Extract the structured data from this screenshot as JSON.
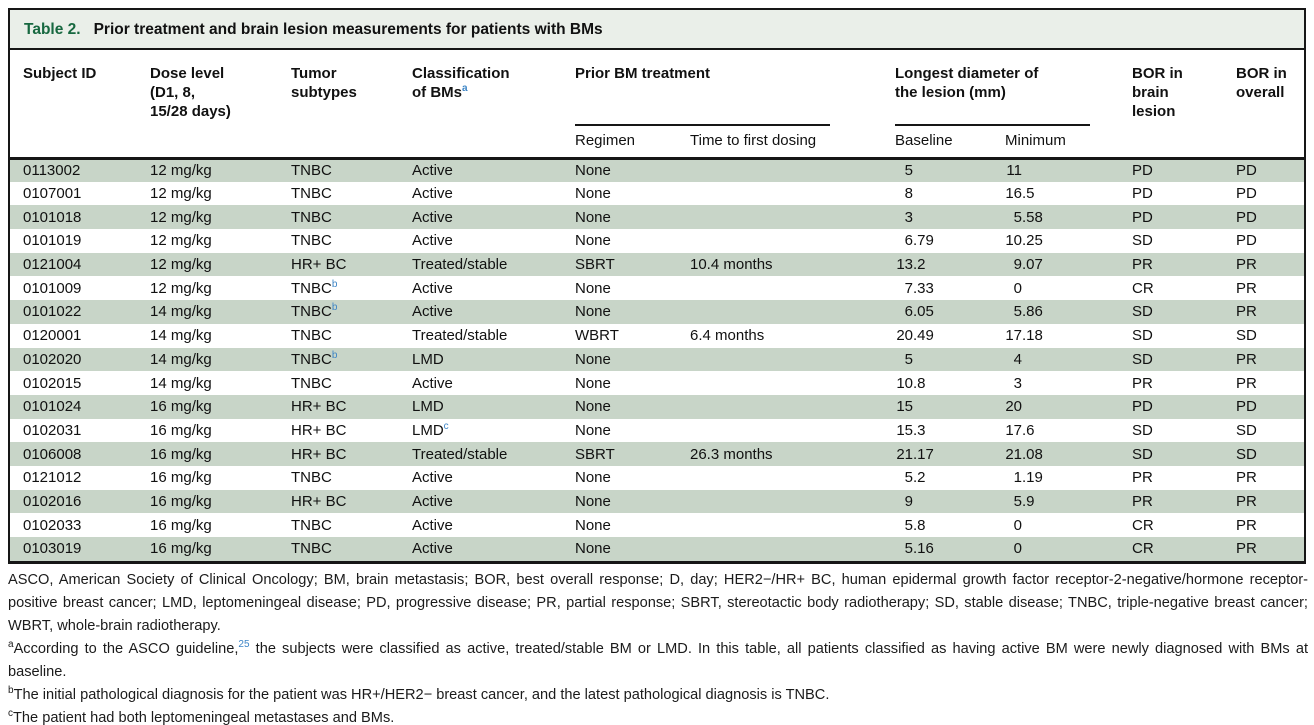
{
  "colors": {
    "stripe": "#c8d5c8",
    "title_bar_bg": "#eaefe9",
    "title_green": "#176840",
    "superscript_blue": "#3d85c6"
  },
  "table": {
    "title_label": "Table 2.",
    "title_text": "Prior treatment and brain lesion measurements for patients with BMs",
    "headers": {
      "subject_id": "Subject ID",
      "dose_level": "Dose level\n(D1, 8,\n15/28 days)",
      "tumor_subtypes": "Tumor\nsubtypes",
      "classification": "Classification\nof BMs",
      "classification_sup": "a",
      "prior_bm_group": "Prior BM treatment",
      "regimen": "Regimen",
      "time_to_first_dosing": "Time to first dosing",
      "diameter_group": "Longest diameter of\nthe lesion (mm)",
      "baseline": "Baseline",
      "minimum": "Minimum",
      "bor_brain": "BOR in\nbrain\nlesion",
      "bor_overall": "BOR in\noverall"
    },
    "rows": [
      {
        "subject_id": "0113002",
        "dose": "12 mg/kg",
        "subtype": "TNBC",
        "subtype_sup": "",
        "classification": "Active",
        "classification_sup": "",
        "regimen": "None",
        "time_to_first_dosing": "",
        "baseline": "5",
        "minimum": "11",
        "bor_brain": "PD",
        "bor_overall": "PD"
      },
      {
        "subject_id": "0107001",
        "dose": "12 mg/kg",
        "subtype": "TNBC",
        "subtype_sup": "",
        "classification": "Active",
        "classification_sup": "",
        "regimen": "None",
        "time_to_first_dosing": "",
        "baseline": "8",
        "minimum": "16.5",
        "bor_brain": "PD",
        "bor_overall": "PD"
      },
      {
        "subject_id": "0101018",
        "dose": "12 mg/kg",
        "subtype": "TNBC",
        "subtype_sup": "",
        "classification": "Active",
        "classification_sup": "",
        "regimen": "None",
        "time_to_first_dosing": "",
        "baseline": "3",
        "minimum": "5.58",
        "bor_brain": "PD",
        "bor_overall": "PD"
      },
      {
        "subject_id": "0101019",
        "dose": "12 mg/kg",
        "subtype": "TNBC",
        "subtype_sup": "",
        "classification": "Active",
        "classification_sup": "",
        "regimen": "None",
        "time_to_first_dosing": "",
        "baseline": "6.79",
        "minimum": "10.25",
        "bor_brain": "SD",
        "bor_overall": "PD"
      },
      {
        "subject_id": "0121004",
        "dose": "12 mg/kg",
        "subtype": "HR+ BC",
        "subtype_sup": "",
        "classification": "Treated/stable",
        "classification_sup": "",
        "regimen": "SBRT",
        "time_to_first_dosing": "10.4 months",
        "baseline": "13.2",
        "minimum": "9.07",
        "bor_brain": "PR",
        "bor_overall": "PR"
      },
      {
        "subject_id": "0101009",
        "dose": "12 mg/kg",
        "subtype": "TNBC",
        "subtype_sup": "b",
        "classification": "Active",
        "classification_sup": "",
        "regimen": "None",
        "time_to_first_dosing": "",
        "baseline": "7.33",
        "minimum": "0",
        "bor_brain": "CR",
        "bor_overall": "PR"
      },
      {
        "subject_id": "0101022",
        "dose": "14 mg/kg",
        "subtype": "TNBC",
        "subtype_sup": "b",
        "classification": "Active",
        "classification_sup": "",
        "regimen": "None",
        "time_to_first_dosing": "",
        "baseline": "6.05",
        "minimum": "5.86",
        "bor_brain": "SD",
        "bor_overall": "PR"
      },
      {
        "subject_id": "0120001",
        "dose": "14 mg/kg",
        "subtype": "TNBC",
        "subtype_sup": "",
        "classification": "Treated/stable",
        "classification_sup": "",
        "regimen": "WBRT",
        "time_to_first_dosing": "6.4 months",
        "baseline": "20.49",
        "minimum": "17.18",
        "bor_brain": "SD",
        "bor_overall": "SD"
      },
      {
        "subject_id": "0102020",
        "dose": "14 mg/kg",
        "subtype": "TNBC",
        "subtype_sup": "b",
        "classification": "LMD",
        "classification_sup": "",
        "regimen": "None",
        "time_to_first_dosing": "",
        "baseline": "5",
        "minimum": "4",
        "bor_brain": "SD",
        "bor_overall": "PR"
      },
      {
        "subject_id": "0102015",
        "dose": "14 mg/kg",
        "subtype": "TNBC",
        "subtype_sup": "",
        "classification": "Active",
        "classification_sup": "",
        "regimen": "None",
        "time_to_first_dosing": "",
        "baseline": "10.8",
        "minimum": "3",
        "bor_brain": "PR",
        "bor_overall": "PR"
      },
      {
        "subject_id": "0101024",
        "dose": "16 mg/kg",
        "subtype": "HR+ BC",
        "subtype_sup": "",
        "classification": "LMD",
        "classification_sup": "",
        "regimen": "None",
        "time_to_first_dosing": "",
        "baseline": "15",
        "minimum": "20",
        "bor_brain": "PD",
        "bor_overall": "PD"
      },
      {
        "subject_id": "0102031",
        "dose": "16 mg/kg",
        "subtype": "HR+ BC",
        "subtype_sup": "",
        "classification": "LMD",
        "classification_sup": "c",
        "regimen": "None",
        "time_to_first_dosing": "",
        "baseline": "15.3",
        "minimum": "17.6",
        "bor_brain": "SD",
        "bor_overall": "SD"
      },
      {
        "subject_id": "0106008",
        "dose": "16 mg/kg",
        "subtype": "HR+ BC",
        "subtype_sup": "",
        "classification": "Treated/stable",
        "classification_sup": "",
        "regimen": "SBRT",
        "time_to_first_dosing": "26.3 months",
        "baseline": "21.17",
        "minimum": "21.08",
        "bor_brain": "SD",
        "bor_overall": "SD"
      },
      {
        "subject_id": "0121012",
        "dose": "16 mg/kg",
        "subtype": "TNBC",
        "subtype_sup": "",
        "classification": "Active",
        "classification_sup": "",
        "regimen": "None",
        "time_to_first_dosing": "",
        "baseline": "5.2",
        "minimum": "1.19",
        "bor_brain": "PR",
        "bor_overall": "PR"
      },
      {
        "subject_id": "0102016",
        "dose": "16 mg/kg",
        "subtype": "HR+ BC",
        "subtype_sup": "",
        "classification": "Active",
        "classification_sup": "",
        "regimen": "None",
        "time_to_first_dosing": "",
        "baseline": "9",
        "minimum": "5.9",
        "bor_brain": "PR",
        "bor_overall": "PR"
      },
      {
        "subject_id": "0102033",
        "dose": "16 mg/kg",
        "subtype": "TNBC",
        "subtype_sup": "",
        "classification": "Active",
        "classification_sup": "",
        "regimen": "None",
        "time_to_first_dosing": "",
        "baseline": "5.8",
        "minimum": "0",
        "bor_brain": "CR",
        "bor_overall": "PR"
      },
      {
        "subject_id": "0103019",
        "dose": "16 mg/kg",
        "subtype": "TNBC",
        "subtype_sup": "",
        "classification": "Active",
        "classification_sup": "",
        "regimen": "None",
        "time_to_first_dosing": "",
        "baseline": "5.16",
        "minimum": "0",
        "bor_brain": "CR",
        "bor_overall": "PR"
      }
    ]
  },
  "footnotes": {
    "abbreviations": "ASCO, American Society of Clinical Oncology; BM, brain metastasis; BOR, best overall response; D, day; HER2−/HR+ BC, human epidermal growth factor receptor-2-negative/hormone receptor-positive breast cancer; LMD, leptomeningeal disease; PD, progressive disease; PR, partial response; SBRT, stereotactic body radiotherapy; SD, stable disease; TNBC, triple-negative breast cancer; WBRT, whole-brain radiotherapy.",
    "a": {
      "marker": "a",
      "pre": "According to the ASCO guideline,",
      "ref": "25",
      "post": " the subjects were classified as active, treated/stable BM or LMD. In this table, all patients classified as having active BM were newly diagnosed with BMs at baseline."
    },
    "b": {
      "marker": "b",
      "text": "The initial pathological diagnosis for the patient was HR+/HER2− breast cancer, and the latest pathological diagnosis is TNBC."
    },
    "c": {
      "marker": "c",
      "text": "The patient had both leptomeningeal metastases and BMs."
    }
  }
}
